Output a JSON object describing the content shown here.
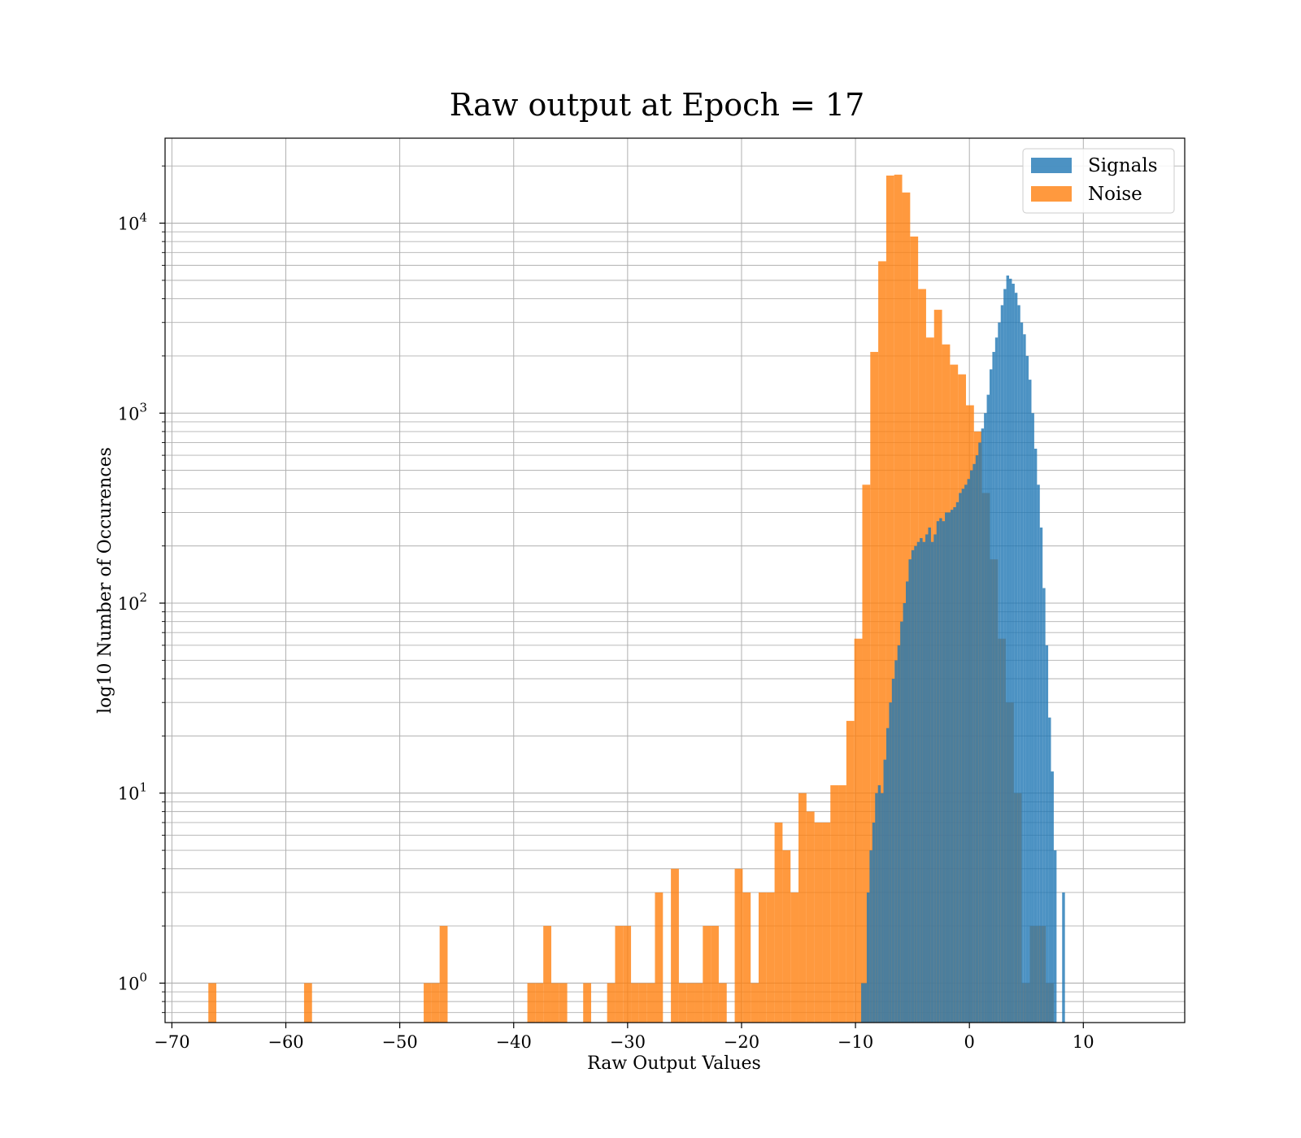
{
  "chart_data": {
    "type": "histogram",
    "title": "Raw output at Epoch = 17",
    "xlabel": "Raw Output Values",
    "ylabel": "log10 Number of Occurences",
    "xlim": [
      -70.6,
      18.9
    ],
    "ylim": [
      0.62,
      28000
    ],
    "yscale": "log",
    "grid": true,
    "legend": "top-right",
    "x_ticks": [
      -70,
      -60,
      -50,
      -40,
      -30,
      -20,
      -10,
      0,
      10
    ],
    "x_tick_labels": [
      "−70",
      "−60",
      "−50",
      "−40",
      "−30",
      "−20",
      "−10",
      "0",
      "10"
    ],
    "y_ticks": [
      {
        "value": 1,
        "base": "10",
        "exp": "0"
      },
      {
        "value": 10,
        "base": "10",
        "exp": "1"
      },
      {
        "value": 100,
        "base": "10",
        "exp": "2"
      },
      {
        "value": 1000,
        "base": "10",
        "exp": "3"
      },
      {
        "value": 10000,
        "base": "10",
        "exp": "4"
      }
    ],
    "series": [
      {
        "name": "Noise",
        "color": "#ff7f0e",
        "bin_start": -66.8,
        "bin_width": 0.7,
        "values": [
          1,
          0,
          0,
          0,
          0,
          0,
          0,
          0,
          0,
          0,
          0,
          0,
          1,
          0,
          0,
          0,
          0,
          0,
          0,
          0,
          0,
          0,
          0,
          0,
          0,
          0,
          0,
          1,
          1,
          2,
          0,
          0,
          0,
          0,
          0,
          0,
          0,
          0,
          0,
          0,
          1,
          1,
          2,
          1,
          1,
          0,
          0,
          1,
          0,
          0,
          1,
          2,
          2,
          1,
          1,
          1,
          3,
          0,
          4,
          1,
          1,
          1,
          2,
          2,
          1,
          0,
          4,
          3,
          1,
          3,
          3,
          7,
          5,
          3,
          10,
          8,
          7,
          7,
          11,
          11,
          24,
          65,
          420,
          2100,
          6300,
          17800,
          18000,
          14500,
          8500,
          4500,
          2500,
          3500,
          2300,
          1800,
          1600,
          1100,
          800,
          380,
          170,
          65,
          30,
          10,
          1,
          2,
          2,
          1
        ]
      },
      {
        "name": "Signals",
        "color": "#1f77b4",
        "bin_start": -9.5,
        "bin_width": 0.245,
        "values": [
          1,
          1,
          3,
          5,
          7,
          10,
          11,
          10,
          15,
          22,
          30,
          40,
          50,
          60,
          80,
          100,
          130,
          170,
          190,
          200,
          210,
          220,
          210,
          230,
          250,
          210,
          230,
          270,
          280,
          270,
          300,
          300,
          310,
          320,
          340,
          380,
          400,
          420,
          450,
          500,
          540,
          600,
          700,
          830,
          1000,
          1250,
          1700,
          2100,
          2500,
          3000,
          3700,
          4500,
          5300,
          5100,
          4800,
          4300,
          3700,
          3000,
          2600,
          2000,
          1500,
          1000,
          650,
          420,
          250,
          120,
          60,
          25,
          13,
          5,
          0,
          0,
          3
        ]
      }
    ]
  }
}
